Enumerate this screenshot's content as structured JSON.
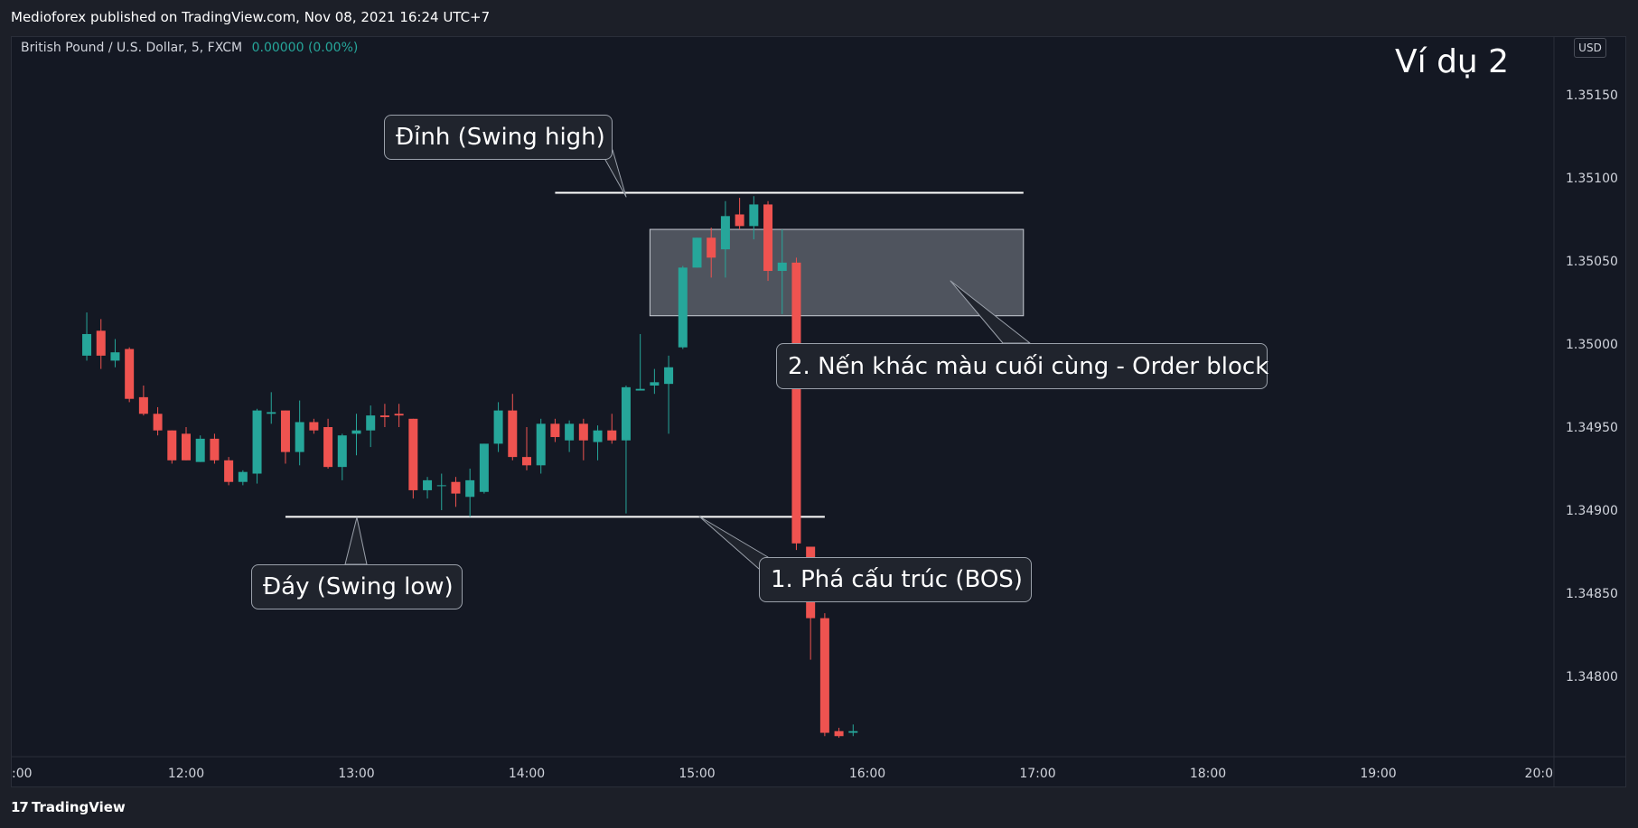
{
  "header": {
    "publisher": "Medioforex published on TradingView.com, Nov 08, 2021 16:24 UTC+7"
  },
  "symbol": {
    "name": "British Pound / U.S. Dollar, 5, FXCM",
    "change": "0.00000 (0.00%)"
  },
  "currency_badge": "USD",
  "corner_title": "Ví dụ 2",
  "footer": {
    "brand": "TradingView",
    "logo": "17"
  },
  "colors": {
    "bull": "#26a69a",
    "bear": "#ef5350",
    "background": "#141823",
    "axis_text": "#d1d4dc"
  },
  "annotations": {
    "swing_high": "Đỉnh (Swing high)",
    "swing_low": "Đáy (Swing low)",
    "bos": "1. Phá cấu trúc (BOS)",
    "order_block": "2. Nến khác màu cuối cùng - Order block"
  },
  "chart_data": {
    "type": "candlestick",
    "x_tick_labels": [
      ":00",
      "12:00",
      "13:00",
      "14:00",
      "15:00",
      "16:00",
      "17:00",
      "18:00",
      "19:00",
      "20:0"
    ],
    "y_tick_labels": [
      "1.35150",
      "1.35100",
      "1.35050",
      "1.35000",
      "1.34950",
      "1.34900",
      "1.34850",
      "1.34800"
    ],
    "ylim": [
      1.34764,
      1.35184
    ],
    "interval_minutes": 5,
    "first_candle_time": "11:25",
    "swing_high_level": 1.35091,
    "swing_low_level": 1.34896,
    "order_block_zone": {
      "from_time": "14:45",
      "to_time": "16:55",
      "top": 1.35069,
      "bottom": 1.35017
    },
    "candles": [
      {
        "o": 1.34993,
        "h": 1.35019,
        "l": 1.3499,
        "c": 1.35006
      },
      {
        "o": 1.35008,
        "h": 1.35015,
        "l": 1.34985,
        "c": 1.34993
      },
      {
        "o": 1.3499,
        "h": 1.35003,
        "l": 1.34986,
        "c": 1.34995
      },
      {
        "o": 1.34997,
        "h": 1.34998,
        "l": 1.34965,
        "c": 1.34967
      },
      {
        "o": 1.34968,
        "h": 1.34975,
        "l": 1.34957,
        "c": 1.34958
      },
      {
        "o": 1.34958,
        "h": 1.34962,
        "l": 1.34945,
        "c": 1.34948
      },
      {
        "o": 1.34948,
        "h": 1.34948,
        "l": 1.34928,
        "c": 1.3493
      },
      {
        "o": 1.34946,
        "h": 1.3495,
        "l": 1.3493,
        "c": 1.3493
      },
      {
        "o": 1.34929,
        "h": 1.34945,
        "l": 1.34929,
        "c": 1.34943
      },
      {
        "o": 1.34943,
        "h": 1.34946,
        "l": 1.34928,
        "c": 1.3493
      },
      {
        "o": 1.3493,
        "h": 1.34932,
        "l": 1.34915,
        "c": 1.34917
      },
      {
        "o": 1.34917,
        "h": 1.34924,
        "l": 1.34915,
        "c": 1.34923
      },
      {
        "o": 1.34922,
        "h": 1.34961,
        "l": 1.34916,
        "c": 1.3496
      },
      {
        "o": 1.34958,
        "h": 1.34971,
        "l": 1.34952,
        "c": 1.34959
      },
      {
        "o": 1.3496,
        "h": 1.3496,
        "l": 1.34928,
        "c": 1.34935
      },
      {
        "o": 1.34935,
        "h": 1.34966,
        "l": 1.34927,
        "c": 1.34953
      },
      {
        "o": 1.34953,
        "h": 1.34955,
        "l": 1.34946,
        "c": 1.34948
      },
      {
        "o": 1.3495,
        "h": 1.34955,
        "l": 1.34925,
        "c": 1.34926
      },
      {
        "o": 1.34926,
        "h": 1.34946,
        "l": 1.34918,
        "c": 1.34945
      },
      {
        "o": 1.34946,
        "h": 1.34958,
        "l": 1.34933,
        "c": 1.34948
      },
      {
        "o": 1.34948,
        "h": 1.34963,
        "l": 1.34938,
        "c": 1.34957
      },
      {
        "o": 1.34957,
        "h": 1.34964,
        "l": 1.3495,
        "c": 1.34956
      },
      {
        "o": 1.34958,
        "h": 1.34964,
        "l": 1.3495,
        "c": 1.34957
      },
      {
        "o": 1.34955,
        "h": 1.34955,
        "l": 1.34907,
        "c": 1.34912
      },
      {
        "o": 1.34912,
        "h": 1.3492,
        "l": 1.34907,
        "c": 1.34918
      },
      {
        "o": 1.34915,
        "h": 1.34922,
        "l": 1.349,
        "c": 1.34915
      },
      {
        "o": 1.34917,
        "h": 1.3492,
        "l": 1.34902,
        "c": 1.3491
      },
      {
        "o": 1.34908,
        "h": 1.34925,
        "l": 1.34896,
        "c": 1.34918
      },
      {
        "o": 1.34911,
        "h": 1.3494,
        "l": 1.3491,
        "c": 1.3494
      },
      {
        "o": 1.3494,
        "h": 1.34965,
        "l": 1.34935,
        "c": 1.3496
      },
      {
        "o": 1.3496,
        "h": 1.3497,
        "l": 1.3493,
        "c": 1.34932
      },
      {
        "o": 1.34932,
        "h": 1.3495,
        "l": 1.34924,
        "c": 1.34927
      },
      {
        "o": 1.34927,
        "h": 1.34955,
        "l": 1.34922,
        "c": 1.34952
      },
      {
        "o": 1.34952,
        "h": 1.34955,
        "l": 1.34941,
        "c": 1.34944
      },
      {
        "o": 1.34942,
        "h": 1.34954,
        "l": 1.34935,
        "c": 1.34952
      },
      {
        "o": 1.34952,
        "h": 1.34955,
        "l": 1.3493,
        "c": 1.34942
      },
      {
        "o": 1.34941,
        "h": 1.34951,
        "l": 1.3493,
        "c": 1.34948
      },
      {
        "o": 1.34948,
        "h": 1.34958,
        "l": 1.3494,
        "c": 1.34942
      },
      {
        "o": 1.34942,
        "h": 1.34975,
        "l": 1.34898,
        "c": 1.34974
      },
      {
        "o": 1.34972,
        "h": 1.35006,
        "l": 1.34972,
        "c": 1.34973
      },
      {
        "o": 1.34975,
        "h": 1.34985,
        "l": 1.3497,
        "c": 1.34977
      },
      {
        "o": 1.34976,
        "h": 1.34993,
        "l": 1.34946,
        "c": 1.34986
      },
      {
        "o": 1.34998,
        "h": 1.35047,
        "l": 1.34997,
        "c": 1.35046
      },
      {
        "o": 1.35046,
        "h": 1.35064,
        "l": 1.35046,
        "c": 1.35064
      },
      {
        "o": 1.35064,
        "h": 1.3507,
        "l": 1.3504,
        "c": 1.35052
      },
      {
        "o": 1.35057,
        "h": 1.35086,
        "l": 1.3504,
        "c": 1.35077
      },
      {
        "o": 1.35078,
        "h": 1.35088,
        "l": 1.35069,
        "c": 1.35071
      },
      {
        "o": 1.35071,
        "h": 1.35089,
        "l": 1.35063,
        "c": 1.35084
      },
      {
        "o": 1.35084,
        "h": 1.35086,
        "l": 1.35038,
        "c": 1.35044
      },
      {
        "o": 1.35044,
        "h": 1.35069,
        "l": 1.35018,
        "c": 1.35049
      },
      {
        "o": 1.35049,
        "h": 1.35052,
        "l": 1.34876,
        "c": 1.3488
      },
      {
        "o": 1.34878,
        "h": 1.34878,
        "l": 1.3481,
        "c": 1.34835
      },
      {
        "o": 1.34835,
        "h": 1.34838,
        "l": 1.34764,
        "c": 1.34766
      },
      {
        "o": 1.34767,
        "h": 1.34769,
        "l": 1.34763,
        "c": 1.34764
      },
      {
        "o": 1.34766,
        "h": 1.34771,
        "l": 1.34764,
        "c": 1.34767
      }
    ]
  }
}
